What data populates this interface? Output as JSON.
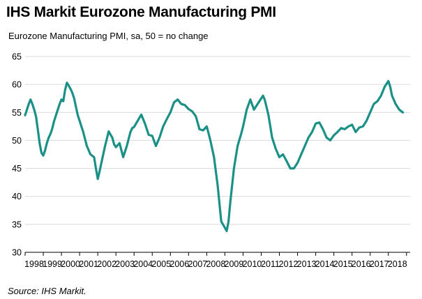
{
  "header": {
    "title": "IHS Markit Eurozone Manufacturing PMI",
    "subtitle": "Eurozone Manufacturing PMI, sa, 50 = no change"
  },
  "footer": {
    "source": "Source: IHS Markit."
  },
  "colors": {
    "line": "#1a9086",
    "grid": "#d9d9d9",
    "axis": "#000000"
  },
  "chart_data": {
    "type": "line",
    "title": "IHS Markit Eurozone Manufacturing PMI",
    "subtitle": "Eurozone Manufacturing PMI, sa, 50 = no change",
    "xlabel": "",
    "ylabel": "",
    "ylim": [
      30,
      65
    ],
    "xlim": [
      1998.0,
      2019.2
    ],
    "y_ticks": [
      30,
      35,
      40,
      45,
      50,
      55,
      60,
      65
    ],
    "x_tick_labels": [
      "1998",
      "1999",
      "2000",
      "2001",
      "2002",
      "2003",
      "2004",
      "2005",
      "2006",
      "2007",
      "2008",
      "2009",
      "2010",
      "2011",
      "2012",
      "2013",
      "2014",
      "2015",
      "2016",
      "2017",
      "2018"
    ],
    "grid": "horizontal",
    "legend": "none",
    "series": [
      {
        "color": "#1a9086",
        "x": [
          1998.0,
          1998.1,
          1998.2,
          1998.3,
          1998.4,
          1998.5,
          1998.6,
          1998.7,
          1998.8,
          1998.9,
          1999.0,
          1999.1,
          1999.2,
          1999.3,
          1999.4,
          1999.5,
          1999.6,
          1999.7,
          1999.8,
          1999.9,
          2000.0,
          2000.1,
          2000.2,
          2000.3,
          2000.4,
          2000.5,
          2000.6,
          2000.7,
          2000.8,
          2000.9,
          2001.0,
          2001.2,
          2001.4,
          2001.6,
          2001.8,
          2001.9,
          2002.0,
          2002.1,
          2002.2,
          2002.4,
          2002.6,
          2002.8,
          2002.9,
          2003.0,
          2003.2,
          2003.4,
          2003.6,
          2003.8,
          2003.9,
          2004.0,
          2004.2,
          2004.4,
          2004.6,
          2004.8,
          2005.0,
          2005.2,
          2005.4,
          2005.6,
          2005.8,
          2006.0,
          2006.2,
          2006.4,
          2006.6,
          2006.8,
          2007.0,
          2007.2,
          2007.4,
          2007.6,
          2007.8,
          2008.0,
          2008.2,
          2008.4,
          2008.6,
          2008.8,
          2009.0,
          2009.1,
          2009.2,
          2009.3,
          2009.5,
          2009.7,
          2009.9,
          2010.0,
          2010.2,
          2010.4,
          2010.6,
          2010.8,
          2011.0,
          2011.1,
          2011.2,
          2011.4,
          2011.6,
          2011.8,
          2012.0,
          2012.2,
          2012.4,
          2012.6,
          2012.8,
          2013.0,
          2013.2,
          2013.4,
          2013.6,
          2013.8,
          2014.0,
          2014.2,
          2014.4,
          2014.6,
          2014.8,
          2015.0,
          2015.2,
          2015.4,
          2015.6,
          2015.8,
          2016.0,
          2016.2,
          2016.4,
          2016.6,
          2016.8,
          2017.0,
          2017.2,
          2017.4,
          2017.6,
          2017.8,
          2018.0,
          2018.1,
          2018.2,
          2018.4,
          2018.6,
          2018.8
        ],
        "y": [
          54.5,
          55.5,
          56.5,
          57.3,
          56.5,
          55.5,
          54.3,
          52.0,
          49.5,
          47.8,
          47.3,
          48.2,
          49.5,
          50.5,
          51.2,
          52.2,
          53.5,
          54.5,
          55.5,
          56.5,
          57.3,
          57.0,
          59.0,
          60.3,
          59.8,
          59.2,
          58.5,
          57.5,
          56.0,
          54.5,
          53.5,
          51.5,
          49.0,
          47.5,
          47.0,
          45.0,
          43.1,
          44.5,
          46.0,
          49.0,
          51.6,
          50.5,
          49.3,
          48.8,
          49.5,
          47.0,
          49.0,
          51.5,
          52.2,
          52.4,
          53.5,
          54.6,
          53.0,
          51.0,
          50.8,
          49.0,
          50.5,
          52.5,
          53.8,
          55.0,
          56.8,
          57.3,
          56.5,
          56.3,
          55.6,
          55.2,
          54.3,
          52.0,
          51.8,
          52.5,
          50.0,
          47.0,
          42.0,
          35.5,
          34.4,
          33.8,
          35.5,
          39.0,
          45.0,
          49.0,
          51.2,
          52.5,
          55.5,
          57.3,
          55.5,
          56.5,
          57.5,
          58.0,
          57.2,
          54.5,
          50.5,
          48.5,
          47.0,
          47.5,
          46.3,
          45.0,
          45.0,
          46.0,
          47.5,
          49.0,
          50.5,
          51.5,
          53.0,
          53.2,
          52.0,
          50.5,
          50.0,
          50.9,
          51.5,
          52.2,
          52.0,
          52.5,
          52.8,
          51.5,
          52.3,
          52.5,
          53.5,
          55.0,
          56.5,
          57.0,
          58.0,
          59.6,
          60.6,
          59.6,
          58.0,
          56.5,
          55.5,
          55.0
        ]
      }
    ]
  }
}
